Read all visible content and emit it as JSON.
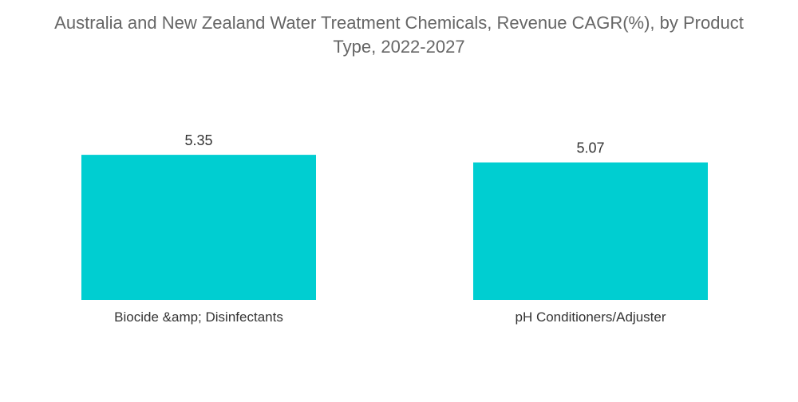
{
  "chart_data": {
    "type": "bar",
    "title_lines": [
      "Australia and New Zealand Water Treatment Chemicals, Revenue CAGR(%), by Product",
      "Type, 2022-2027"
    ],
    "categories": [
      "Biocide &amp; Disinfectants",
      "pH Conditioners/Adjuster"
    ],
    "values": [
      5.35,
      5.07
    ],
    "value_labels": [
      "5.35",
      "5.07"
    ],
    "xlabel": "",
    "ylabel": "",
    "grid": false,
    "legend": "none",
    "bar_color": "#00CED1"
  }
}
